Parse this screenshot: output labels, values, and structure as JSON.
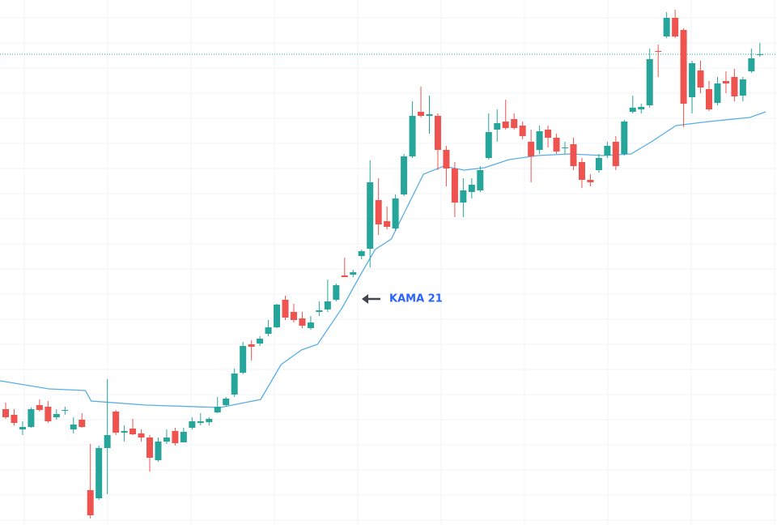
{
  "chart_data": {
    "type": "candlestick",
    "ylim": [
      0,
      648
    ],
    "up_color": "#26a69a",
    "down_color": "#ef5350",
    "grid": true,
    "open": [
      143,
      136,
      118,
      121,
      148,
      146,
      133,
      141,
      118,
      130,
      43,
      33,
      95,
      140,
      114,
      119,
      113,
      108,
      80,
      103,
      116,
      102,
      120,
      126,
      127,
      139,
      148,
      161,
      188,
      223,
      224,
      236,
      244,
      278,
      263,
      255,
      243,
      263,
      266,
      278,
      308,
      309,
      332,
      341,
      401,
      375,
      366,
      408,
      455,
      510,
      505,
      505,
      463,
      440,
      398,
      411,
      413,
      453,
      488,
      498,
      501,
      493,
      473,
      463,
      488,
      478,
      465,
      470,
      448,
      426,
      438,
      456,
      473,
      458,
      510,
      513,
      518,
      585,
      603,
      626,
      611,
      528,
      561,
      538,
      521,
      548,
      553,
      530,
      560,
      580
    ],
    "high": [
      151,
      143,
      128,
      145,
      155,
      153,
      143,
      146,
      133,
      138,
      100,
      98,
      180,
      142,
      123,
      131,
      118,
      111,
      108,
      118,
      120,
      120,
      133,
      138,
      133,
      158,
      158,
      193,
      226,
      228,
      233,
      253,
      273,
      283,
      273,
      263,
      258,
      276,
      303,
      298,
      330,
      315,
      340,
      450,
      428,
      393,
      408,
      458,
      523,
      541,
      530,
      508,
      468,
      448,
      428,
      428,
      443,
      508,
      513,
      525,
      508,
      498,
      488,
      493,
      493,
      483,
      473,
      478,
      453,
      433,
      458,
      473,
      480,
      500,
      530,
      520,
      588,
      593,
      633,
      636,
      613,
      573,
      573,
      548,
      553,
      560,
      563,
      553,
      588,
      595
    ],
    "low": [
      131,
      123,
      111,
      120,
      140,
      126,
      130,
      136,
      113,
      120,
      8,
      31,
      38,
      111,
      103,
      111,
      103,
      66,
      78,
      100,
      98,
      102,
      118,
      123,
      123,
      138,
      146,
      158,
      186,
      203,
      221,
      233,
      243,
      253,
      250,
      243,
      241,
      258,
      263,
      276,
      306,
      306,
      328,
      318,
      358,
      365,
      363,
      406,
      453,
      503,
      483,
      438,
      418,
      380,
      380,
      403,
      411,
      451,
      473,
      488,
      488,
      476,
      423,
      458,
      466,
      458,
      458,
      438,
      416,
      418,
      435,
      453,
      438,
      456,
      508,
      508,
      515,
      553,
      601,
      601,
      491,
      508,
      533,
      511,
      518,
      533,
      523,
      523,
      558,
      578
    ],
    "close": [
      133,
      126,
      121,
      143,
      142,
      128,
      137,
      142,
      124,
      121,
      12,
      95,
      111,
      114,
      116,
      112,
      108,
      83,
      103,
      108,
      101,
      115,
      128,
      128,
      131,
      146,
      156,
      187,
      221,
      220,
      230,
      244,
      272,
      256,
      253,
      246,
      250,
      265,
      276,
      296,
      306,
      312,
      338,
      423,
      371,
      368,
      403,
      455,
      505,
      505,
      507,
      463,
      440,
      398,
      413,
      420,
      438,
      485,
      496,
      490,
      490,
      480,
      455,
      486,
      478,
      461,
      466,
      443,
      426,
      423,
      453,
      468,
      443,
      498,
      515,
      516,
      575,
      584,
      626,
      603,
      520,
      570,
      540,
      513,
      545,
      545,
      529,
      550,
      576,
      581
    ],
    "indicator": {
      "name": "KAMA 21",
      "color": "#5aaee6",
      "x": [
        -0.67,
        5.1,
        9.4,
        10.1,
        16.6,
        25.3,
        30.1,
        32.5,
        34.9,
        36.8,
        39.7,
        42.1,
        43.6,
        45.5,
        47.4,
        49.3,
        51.7,
        54.1,
        56.5,
        59.4,
        62.8,
        66.6,
        70.5,
        73.8,
        76.2,
        79.1,
        83,
        87.8,
        89.7
      ],
      "values": [
        178,
        168,
        166,
        153,
        148,
        145,
        155,
        198,
        216,
        223,
        268,
        313,
        340,
        353,
        393,
        433,
        443,
        438,
        441,
        451,
        456,
        458,
        456,
        458,
        473,
        493,
        498,
        503,
        510
      ]
    },
    "last_price": 581
  }
}
